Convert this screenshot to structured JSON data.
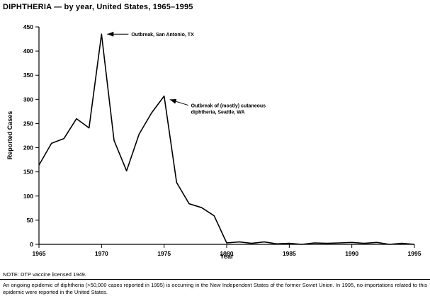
{
  "title": "DIPHTHERIA — by year, United States, 1965–1995",
  "axis": {
    "x_label": "Year",
    "y_label": "Reported Cases"
  },
  "note": "NOTE: DTP vaccine licensed 1949.",
  "footer": "An ongoing epidemic of diphtheria (>50,000 cases reported in 1995) is occurring in the New Independent States of the former Soviet Union. In 1995, no importations related to this epidemic were reported in the United States.",
  "chart_data": {
    "type": "line",
    "title": "DIPHTHERIA — by year, United States, 1965–1995",
    "xlabel": "Year",
    "ylabel": "Reported Cases",
    "xlim": [
      1965,
      1995
    ],
    "ylim": [
      0,
      450
    ],
    "x_ticks": [
      1965,
      1970,
      1975,
      1980,
      1985,
      1990,
      1995
    ],
    "y_ticks": [
      0,
      50,
      100,
      150,
      200,
      250,
      300,
      350,
      400,
      450
    ],
    "grid": false,
    "legend": false,
    "line_color": "#000000",
    "x": [
      1965,
      1966,
      1967,
      1968,
      1969,
      1970,
      1971,
      1972,
      1973,
      1974,
      1975,
      1976,
      1977,
      1978,
      1979,
      1980,
      1981,
      1982,
      1983,
      1984,
      1985,
      1986,
      1987,
      1988,
      1989,
      1990,
      1991,
      1992,
      1993,
      1994,
      1995
    ],
    "values": [
      164,
      209,
      219,
      260,
      241,
      435,
      215,
      152,
      228,
      272,
      307,
      128,
      84,
      76,
      59,
      3,
      5,
      2,
      5,
      1,
      2,
      0,
      3,
      2,
      3,
      4,
      2,
      4,
      0,
      2,
      0
    ],
    "annotations": [
      {
        "lines": [
          "Outbreak, San Antonio, TX"
        ],
        "year": 1970,
        "value": 435,
        "tip": [
          8,
          0
        ],
        "label": [
          42,
          3
        ]
      },
      {
        "lines": [
          "Outbreak of (mostly) cutaneous",
          "diphtheria, Seattle, WA"
        ],
        "year": 1975,
        "value": 307,
        "tip": [
          8,
          5
        ],
        "label": [
          38,
          16
        ]
      }
    ]
  }
}
